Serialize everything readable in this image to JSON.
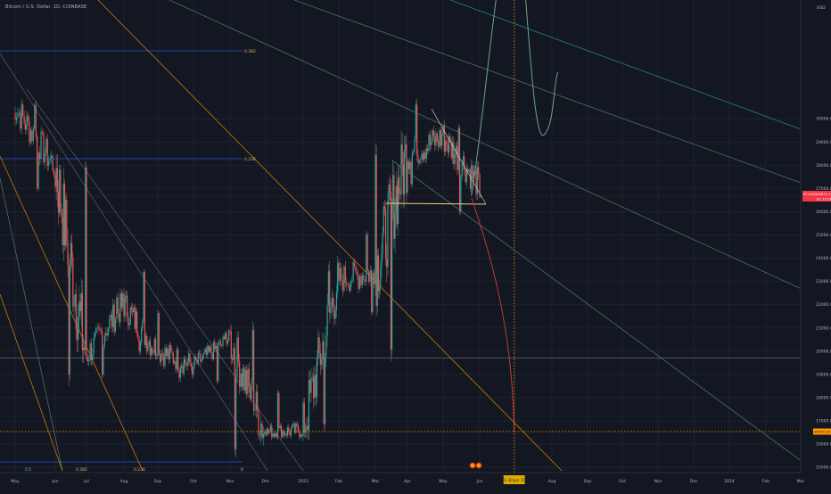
{
  "header": {
    "symbol_title": "Bitcoin / U.S. Dollar, 1D, COINBASE",
    "currency": "USD"
  },
  "colors": {
    "background": "#131722",
    "grid": "#1e2230",
    "up_candle": "#26a69a",
    "down_candle": "#ef5350",
    "fib_blue": "#2962ff",
    "fib_orange": "#ff9800",
    "channel_green": "#5f8f6f",
    "channel_teal": "#26a69a",
    "projection_green": "#6ca582",
    "projection_red": "#c0393b",
    "price_label_red": "#f23645"
  },
  "time_axis": {
    "labels": [
      "May",
      "Jun",
      "Jul",
      "Aug",
      "Sep",
      "Oct",
      "Nov",
      "Dec",
      "2023",
      "Feb",
      "Mar",
      "Apr",
      "May",
      "Jun",
      "Jul",
      "Aug",
      "Sep",
      "Oct",
      "Nov",
      "Dec",
      "2024",
      "Feb",
      "Mar"
    ],
    "highlight_label": "Fri 30 Jun '23"
  },
  "price_axis": {
    "labels": [
      "30000.00",
      "29000.00",
      "28000.00",
      "27000.00",
      "26000.00",
      "25000.00",
      "24000.00",
      "23000.00",
      "22000.00",
      "21000.00",
      "20000.00",
      "19000.00",
      "18000.00",
      "17000.00",
      "16000.00",
      "15000.00"
    ],
    "current_price_label": "26671.26",
    "countdown_label": "01:10:01",
    "symbol_tag": "BTCUSD",
    "level_label": "16542.00"
  },
  "fib_labels": [
    "0.382",
    "0.236",
    "0.5",
    "0.382",
    "0.236",
    "0"
  ],
  "chart_data": {
    "type": "candlestick",
    "title": "Bitcoin / U.S. Dollar, 1D, COINBASE",
    "xlabel": "",
    "ylabel": "",
    "x_range": [
      "2022-05-01",
      "2024-03-31"
    ],
    "ylim": [
      15500,
      30500
    ],
    "grid": true,
    "monthly_ohlc": [
      {
        "x": "2022-05",
        "o": 30500,
        "h": 30800,
        "l": 26800,
        "c": 28000
      },
      {
        "x": "2022-06",
        "o": 28000,
        "h": 28400,
        "l": 18500,
        "c": 19800
      },
      {
        "x": "2022-07",
        "o": 19800,
        "h": 22500,
        "l": 18800,
        "c": 22000
      },
      {
        "x": "2022-08",
        "o": 22000,
        "h": 23600,
        "l": 19800,
        "c": 20000
      },
      {
        "x": "2022-09",
        "o": 20000,
        "h": 21800,
        "l": 18700,
        "c": 19400
      },
      {
        "x": "2022-10",
        "o": 19400,
        "h": 20900,
        "l": 18600,
        "c": 20500
      },
      {
        "x": "2022-11",
        "o": 20500,
        "h": 21200,
        "l": 15500,
        "c": 16500
      },
      {
        "x": "2022-12",
        "o": 16500,
        "h": 18300,
        "l": 16300,
        "c": 16600
      },
      {
        "x": "2023-01",
        "o": 16600,
        "h": 23800,
        "l": 16500,
        "c": 23100
      },
      {
        "x": "2023-02",
        "o": 23100,
        "h": 25200,
        "l": 21500,
        "c": 23400
      },
      {
        "x": "2023-03",
        "o": 23400,
        "h": 28900,
        "l": 19600,
        "c": 28400
      },
      {
        "x": "2023-04",
        "o": 28400,
        "h": 30800,
        "l": 27000,
        "c": 29200
      },
      {
        "x": "2023-05",
        "o": 29200,
        "h": 29800,
        "l": 25800,
        "c": 27200
      },
      {
        "x": "2023-06",
        "o": 27200,
        "h": 27400,
        "l": 26600,
        "c": 26671
      }
    ],
    "horizontal_levels": [
      26671.26,
      19700,
      16542
    ],
    "triangle_base_level": 26550,
    "projection": {
      "scenario_up": [
        {
          "x": "2023-05-25",
          "y": 26700
        },
        {
          "x": "2023-06-15",
          "y": 33000
        },
        {
          "x": "2023-06-30",
          "y": 38800
        },
        {
          "x": "2023-07-15",
          "y": 33000
        },
        {
          "x": "2023-07-25",
          "y": 29300
        },
        {
          "x": "2023-08-06",
          "y": 32000
        }
      ],
      "scenario_down": [
        {
          "x": "2023-05-25",
          "y": 26600
        },
        {
          "x": "2023-06-15",
          "y": 22000
        },
        {
          "x": "2023-06-30",
          "y": 16542
        }
      ],
      "target_date_label": "Fri 30 Jun '23"
    }
  }
}
